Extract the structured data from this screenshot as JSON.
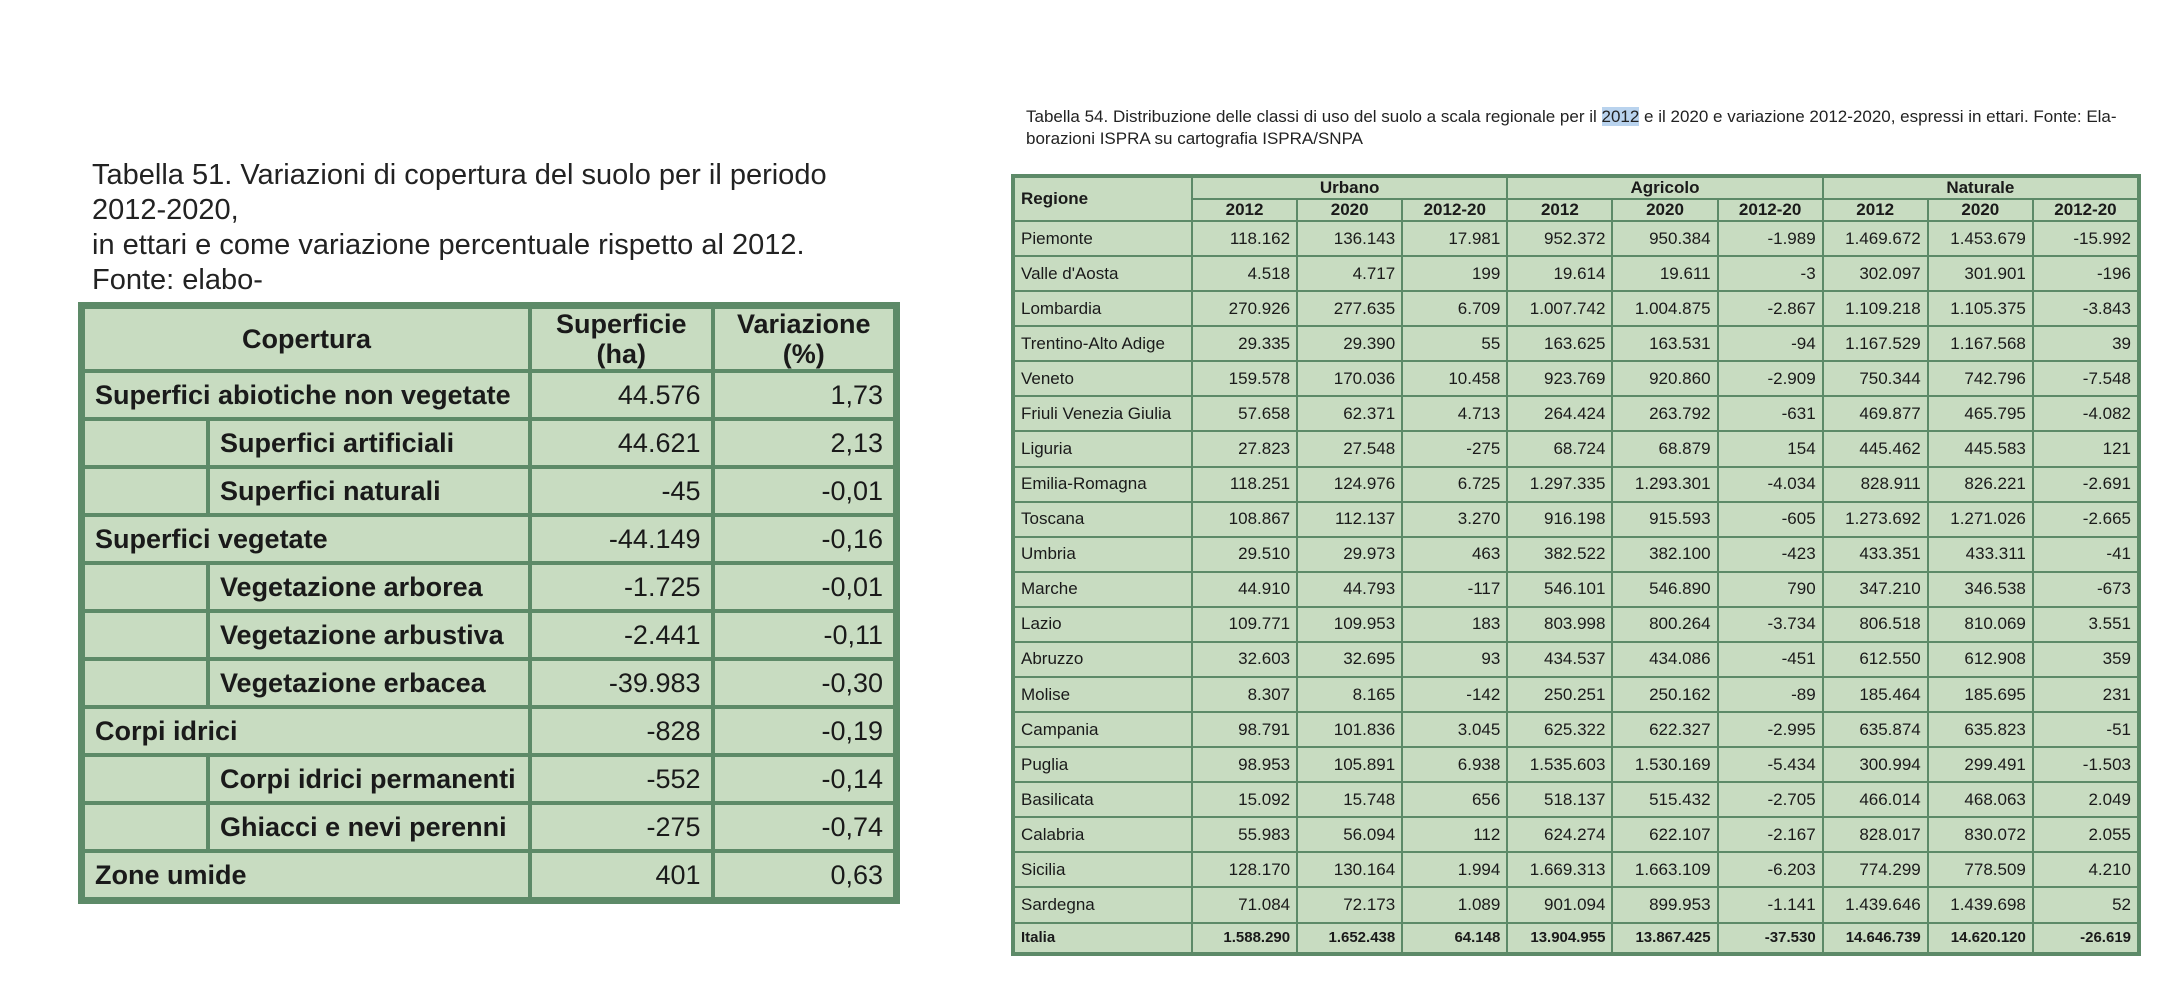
{
  "left": {
    "caption": "Tabella 51. Variazioni di copertura del suolo per il periodo 2012-2020,\nin ettari e come variazione percentuale rispetto al 2012. Fonte: elabo-\nrazioni ISPRA su cartografia SNPA",
    "headers": {
      "copertura": "Copertura",
      "superficie": "Superficie (ha)",
      "variazione": "Variazione (%)"
    },
    "rows": [
      {
        "level": "main",
        "label": "Superfici abiotiche non vegetate",
        "superficie": "44.576",
        "variazione": "1,73"
      },
      {
        "level": "sub",
        "label": "Superfici artificiali",
        "superficie": "44.621",
        "variazione": "2,13"
      },
      {
        "level": "sub",
        "label": "Superfici naturali",
        "superficie": "-45",
        "variazione": "-0,01"
      },
      {
        "level": "main",
        "label": "Superfici vegetate",
        "superficie": "-44.149",
        "variazione": "-0,16"
      },
      {
        "level": "sub",
        "label": "Vegetazione arborea",
        "superficie": "-1.725",
        "variazione": "-0,01"
      },
      {
        "level": "sub",
        "label": "Vegetazione arbustiva",
        "superficie": "-2.441",
        "variazione": "-0,11"
      },
      {
        "level": "sub",
        "label": "Vegetazione erbacea",
        "superficie": "-39.983",
        "variazione": "-0,30"
      },
      {
        "level": "main",
        "label": "Corpi idrici",
        "superficie": "-828",
        "variazione": "-0,19"
      },
      {
        "level": "sub",
        "label": "Corpi idrici permanenti",
        "superficie": "-552",
        "variazione": "-0,14"
      },
      {
        "level": "sub",
        "label": "Ghiacci e nevi perenni",
        "superficie": "-275",
        "variazione": "-0,74"
      },
      {
        "level": "main",
        "label": "Zone umide",
        "superficie": "401",
        "variazione": "0,63"
      }
    ]
  },
  "right": {
    "caption_before": "Tabella 54. Distribuzione delle classi di uso del suolo a scala regionale per il ",
    "caption_highlight": "2012",
    "caption_after": " e il 2020 e variazione 2012-2020, espressi in ettari. Fonte: Ela-borazioni ISPRA su cartografia ISPRA/SNPA",
    "headers": {
      "regione": "Regione",
      "groups": [
        "Urbano",
        "Agricolo",
        "Naturale"
      ],
      "subcols": [
        "2012",
        "2020",
        "2012-20"
      ]
    },
    "rows": [
      [
        "Piemonte",
        "118.162",
        "136.143",
        "17.981",
        "952.372",
        "950.384",
        "-1.989",
        "1.469.672",
        "1.453.679",
        "-15.992"
      ],
      [
        "Valle d'Aosta",
        "4.518",
        "4.717",
        "199",
        "19.614",
        "19.611",
        "-3",
        "302.097",
        "301.901",
        "-196"
      ],
      [
        "Lombardia",
        "270.926",
        "277.635",
        "6.709",
        "1.007.742",
        "1.004.875",
        "-2.867",
        "1.109.218",
        "1.105.375",
        "-3.843"
      ],
      [
        "Trentino-Alto Adige",
        "29.335",
        "29.390",
        "55",
        "163.625",
        "163.531",
        "-94",
        "1.167.529",
        "1.167.568",
        "39"
      ],
      [
        "Veneto",
        "159.578",
        "170.036",
        "10.458",
        "923.769",
        "920.860",
        "-2.909",
        "750.344",
        "742.796",
        "-7.548"
      ],
      [
        "Friuli Venezia Giulia",
        "57.658",
        "62.371",
        "4.713",
        "264.424",
        "263.792",
        "-631",
        "469.877",
        "465.795",
        "-4.082"
      ],
      [
        "Liguria",
        "27.823",
        "27.548",
        "-275",
        "68.724",
        "68.879",
        "154",
        "445.462",
        "445.583",
        "121"
      ],
      [
        "Emilia-Romagna",
        "118.251",
        "124.976",
        "6.725",
        "1.297.335",
        "1.293.301",
        "-4.034",
        "828.911",
        "826.221",
        "-2.691"
      ],
      [
        "Toscana",
        "108.867",
        "112.137",
        "3.270",
        "916.198",
        "915.593",
        "-605",
        "1.273.692",
        "1.271.026",
        "-2.665"
      ],
      [
        "Umbria",
        "29.510",
        "29.973",
        "463",
        "382.522",
        "382.100",
        "-423",
        "433.351",
        "433.311",
        "-41"
      ],
      [
        "Marche",
        "44.910",
        "44.793",
        "-117",
        "546.101",
        "546.890",
        "790",
        "347.210",
        "346.538",
        "-673"
      ],
      [
        "Lazio",
        "109.771",
        "109.953",
        "183",
        "803.998",
        "800.264",
        "-3.734",
        "806.518",
        "810.069",
        "3.551"
      ],
      [
        "Abruzzo",
        "32.603",
        "32.695",
        "93",
        "434.537",
        "434.086",
        "-451",
        "612.550",
        "612.908",
        "359"
      ],
      [
        "Molise",
        "8.307",
        "8.165",
        "-142",
        "250.251",
        "250.162",
        "-89",
        "185.464",
        "185.695",
        "231"
      ],
      [
        "Campania",
        "98.791",
        "101.836",
        "3.045",
        "625.322",
        "622.327",
        "-2.995",
        "635.874",
        "635.823",
        "-51"
      ],
      [
        "Puglia",
        "98.953",
        "105.891",
        "6.938",
        "1.535.603",
        "1.530.169",
        "-5.434",
        "300.994",
        "299.491",
        "-1.503"
      ],
      [
        "Basilicata",
        "15.092",
        "15.748",
        "656",
        "518.137",
        "515.432",
        "-2.705",
        "466.014",
        "468.063",
        "2.049"
      ],
      [
        "Calabria",
        "55.983",
        "56.094",
        "112",
        "624.274",
        "622.107",
        "-2.167",
        "828.017",
        "830.072",
        "2.055"
      ],
      [
        "Sicilia",
        "128.170",
        "130.164",
        "1.994",
        "1.669.313",
        "1.663.109",
        "-6.203",
        "774.299",
        "778.509",
        "4.210"
      ],
      [
        "Sardegna",
        "71.084",
        "72.173",
        "1.089",
        "901.094",
        "899.953",
        "-1.141",
        "1.439.646",
        "1.439.698",
        "52"
      ]
    ],
    "total": [
      "Italia",
      "1.588.290",
      "1.652.438",
      "64.148",
      "13.904.955",
      "13.867.425",
      "-37.530",
      "14.646.739",
      "14.620.120",
      "-26.619"
    ]
  }
}
